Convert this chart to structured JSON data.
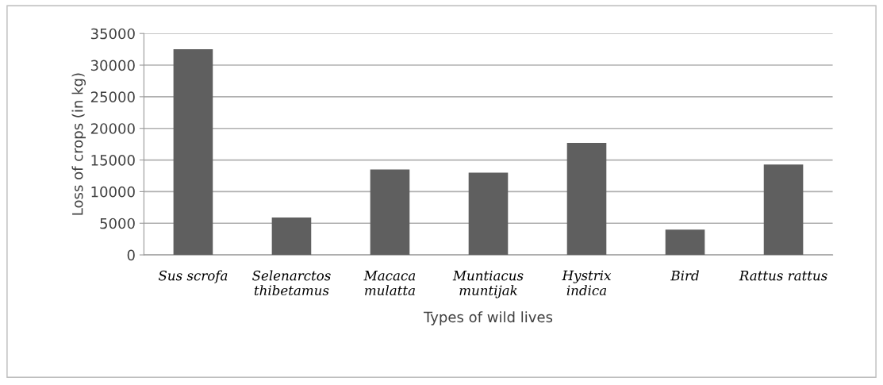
{
  "chart_data": {
    "type": "bar",
    "xlabel": "Types of wild lives",
    "ylabel": "Loss of crops (in kg)",
    "categories": [
      "Sus scrofa",
      "Selenarctos\nthibetamus",
      "Macaca\nmulatta",
      "Muntiacus\nmuntijak",
      "Hystrix\nindica",
      "Bird",
      "Rattus rattus"
    ],
    "values": [
      32500,
      5900,
      13500,
      13000,
      17700,
      4000,
      14300
    ],
    "color": "#5f5f5f",
    "ylim": [
      0,
      35000
    ],
    "yticks": [
      0,
      5000,
      10000,
      15000,
      20000,
      25000,
      30000,
      35000
    ],
    "grid": "y",
    "legend": false
  }
}
